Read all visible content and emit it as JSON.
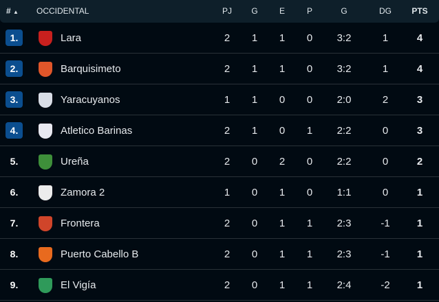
{
  "header": {
    "rank": "#",
    "sort_icon": "triangle-up",
    "group": "OCCIDENTAL",
    "cols": [
      "PJ",
      "G",
      "E",
      "P",
      "G",
      "DG",
      "PTS"
    ]
  },
  "colors": {
    "badge": "#0b4e8f",
    "header_bg": "#0e1f2a",
    "body_bg": "#010a12"
  },
  "rows": [
    {
      "rank": "1.",
      "team": "Lara",
      "pj": "2",
      "g": "1",
      "e": "1",
      "p": "0",
      "goals": "3:2",
      "dg": "1",
      "pts": "4",
      "highlight": true,
      "logo": "#c8201e"
    },
    {
      "rank": "2.",
      "team": "Barquisimeto",
      "pj": "2",
      "g": "1",
      "e": "1",
      "p": "0",
      "goals": "3:2",
      "dg": "1",
      "pts": "4",
      "highlight": true,
      "logo": "#e0562a"
    },
    {
      "rank": "3.",
      "team": "Yaracuyanos",
      "pj": "1",
      "g": "1",
      "e": "0",
      "p": "0",
      "goals": "2:0",
      "dg": "2",
      "pts": "3",
      "highlight": true,
      "logo": "#d9dde6"
    },
    {
      "rank": "4.",
      "team": "Atletico Barinas",
      "pj": "2",
      "g": "1",
      "e": "0",
      "p": "1",
      "goals": "2:2",
      "dg": "0",
      "pts": "3",
      "highlight": true,
      "logo": "#e8e8f0"
    },
    {
      "rank": "5.",
      "team": "Ureña",
      "pj": "2",
      "g": "0",
      "e": "2",
      "p": "0",
      "goals": "2:2",
      "dg": "0",
      "pts": "2",
      "highlight": false,
      "logo": "#3e8f3a"
    },
    {
      "rank": "6.",
      "team": "Zamora 2",
      "pj": "1",
      "g": "0",
      "e": "1",
      "p": "0",
      "goals": "1:1",
      "dg": "0",
      "pts": "1",
      "highlight": false,
      "logo": "#ececec"
    },
    {
      "rank": "7.",
      "team": "Frontera",
      "pj": "2",
      "g": "0",
      "e": "1",
      "p": "1",
      "goals": "2:3",
      "dg": "-1",
      "pts": "1",
      "highlight": false,
      "logo": "#d0452a"
    },
    {
      "rank": "8.",
      "team": "Puerto Cabello B",
      "pj": "2",
      "g": "0",
      "e": "1",
      "p": "1",
      "goals": "2:3",
      "dg": "-1",
      "pts": "1",
      "highlight": false,
      "logo": "#e86a1e"
    },
    {
      "rank": "9.",
      "team": "El Vigía",
      "pj": "2",
      "g": "0",
      "e": "1",
      "p": "1",
      "goals": "2:4",
      "dg": "-2",
      "pts": "1",
      "highlight": false,
      "logo": "#2f9a5a"
    }
  ]
}
